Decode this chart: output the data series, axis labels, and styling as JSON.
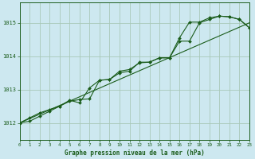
{
  "title": "Graphe pression niveau de la mer (hPa)",
  "bg_color": "#cde8f0",
  "grid_color": "#a8c8b8",
  "line_color": "#1a5c1a",
  "marker_color": "#1a5c1a",
  "xlim": [
    0,
    23
  ],
  "ylim": [
    1011.5,
    1015.6
  ],
  "yticks": [
    1012,
    1013,
    1014,
    1015
  ],
  "xticks": [
    0,
    1,
    2,
    3,
    4,
    5,
    6,
    7,
    8,
    9,
    10,
    11,
    12,
    13,
    14,
    15,
    16,
    17,
    18,
    19,
    20,
    21,
    22,
    23
  ],
  "series1_x": [
    0,
    1,
    2,
    3,
    4,
    5,
    6,
    7,
    8,
    9,
    10,
    11,
    12,
    13,
    14,
    15,
    16,
    17,
    18,
    19,
    20,
    21,
    22,
    23
  ],
  "series1_y": [
    1012.0,
    1012.05,
    1012.2,
    1012.35,
    1012.5,
    1012.65,
    1012.7,
    1012.72,
    1013.28,
    1013.3,
    1013.55,
    1013.6,
    1013.8,
    1013.82,
    1013.95,
    1013.95,
    1014.45,
    1014.45,
    1015.0,
    1015.1,
    1015.2,
    1015.18,
    1015.1,
    1014.85
  ],
  "series2_x": [
    0,
    1,
    2,
    3,
    4,
    5,
    6,
    7,
    8,
    9,
    10,
    11,
    12,
    13,
    14,
    15,
    16,
    17,
    18,
    19,
    20,
    21,
    22,
    23
  ],
  "series2_y": [
    1012.0,
    1012.15,
    1012.3,
    1012.4,
    1012.5,
    1012.68,
    1012.6,
    1013.05,
    1013.28,
    1013.3,
    1013.5,
    1013.55,
    1013.82,
    1013.82,
    1013.95,
    1013.95,
    1014.55,
    1015.02,
    1015.02,
    1015.15,
    1015.2,
    1015.18,
    1015.1,
    1014.85
  ],
  "series3_x": [
    0,
    23
  ],
  "series3_y": [
    1012.0,
    1015.0
  ]
}
